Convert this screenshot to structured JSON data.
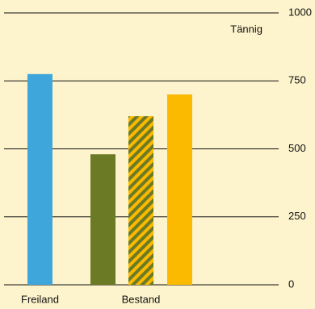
{
  "chart_data": {
    "type": "bar",
    "annotation": "Tännig",
    "categories": [
      "Freiland",
      null,
      "Bestand",
      null
    ],
    "values": [
      775,
      480,
      620,
      700
    ],
    "colors": [
      "#3fa6dc",
      "#6b7a24",
      "#6b7a24",
      "#fbb900"
    ],
    "hatched": [
      false,
      false,
      true,
      false
    ],
    "hatch_color": "#fbb900",
    "ylim": [
      0,
      1000
    ],
    "yticks": [
      0,
      250,
      500,
      750,
      1000
    ],
    "grid": true,
    "y_axis_side": "right"
  }
}
